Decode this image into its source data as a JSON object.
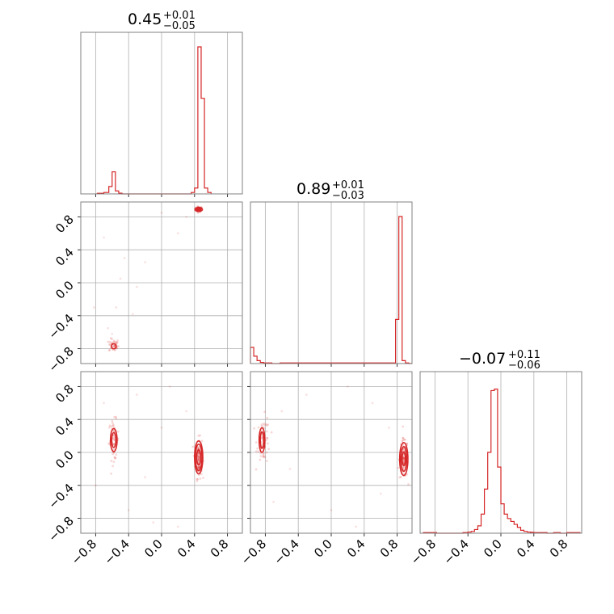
{
  "chart_data": {
    "type": "corner",
    "color": "#d62728",
    "grid": true,
    "axis_range": [
      -0.98,
      0.98
    ],
    "ticks": [
      -0.8,
      -0.4,
      0.0,
      0.4,
      0.8
    ],
    "tick_labels": [
      "−0.8",
      "−0.4",
      "0.0",
      "0.4",
      "0.8"
    ],
    "titles": [
      {
        "median": "0.45",
        "plus": "+0.01",
        "minus": "−0.05"
      },
      {
        "median": "0.89",
        "plus": "+0.01",
        "minus": "−0.03"
      },
      {
        "median": "−0.07",
        "plus": "+0.11",
        "minus": "−0.06"
      }
    ],
    "histograms": [
      {
        "param": 0,
        "edges": [
          -0.78,
          -0.7,
          -0.64,
          -0.6,
          -0.56,
          -0.52,
          -0.48,
          0.36,
          0.4,
          0.44,
          0.48,
          0.52,
          0.56,
          0.6
        ],
        "counts": [
          0.004,
          0.01,
          0.05,
          0.15,
          0.02,
          0.005,
          0,
          0.01,
          0.04,
          1.0,
          0.65,
          0.04,
          0.01
        ]
      },
      {
        "param": 1,
        "edges": [
          -0.98,
          -0.94,
          -0.9,
          -0.86,
          -0.82,
          -0.72,
          -0.62,
          0.78,
          0.82,
          0.86,
          0.9,
          0.94,
          0.98
        ],
        "counts": [
          0.11,
          0.05,
          0.02,
          0.008,
          0.004,
          0,
          0.004,
          0.3,
          1.0,
          0.02,
          0.004,
          0
        ],
        "note_unused": false
      },
      {
        "param": 2,
        "edges": [
          -0.94,
          -0.86,
          -0.78,
          -0.7,
          -0.62,
          -0.54,
          -0.46,
          -0.4,
          -0.36,
          -0.32,
          -0.28,
          -0.24,
          -0.2,
          -0.16,
          -0.12,
          -0.08,
          -0.04,
          0.0,
          0.04,
          0.08,
          0.12,
          0.16,
          0.2,
          0.24,
          0.28,
          0.32,
          0.36,
          0.4,
          0.48,
          0.56,
          0.64,
          0.72,
          0.8,
          0.88,
          0.96
        ],
        "counts": [
          0.004,
          0.004,
          0,
          0,
          0,
          0,
          0.004,
          0.008,
          0.012,
          0.025,
          0.05,
          0.13,
          0.3,
          0.55,
          0.97,
          0.98,
          0.45,
          0.2,
          0.13,
          0.1,
          0.08,
          0.06,
          0.04,
          0.02,
          0.012,
          0.008,
          0.006,
          0.004,
          0.004,
          0,
          0.004,
          0,
          0.004,
          0.004
        ]
      }
    ],
    "scatter_panels": [
      {
        "x_param": 0,
        "y_param": 1,
        "clusters": [
          {
            "cx": 0.45,
            "cy": 0.89,
            "sx": 0.02,
            "sy": 0.015,
            "n": 90
          },
          {
            "cx": -0.58,
            "cy": -0.76,
            "sx": 0.03,
            "sy": 0.04,
            "n": 40
          }
        ],
        "outliers": [
          [
            -0.7,
            0.55
          ],
          [
            -0.45,
            0.3
          ],
          [
            -0.3,
            -0.05
          ],
          [
            -0.55,
            -0.3
          ],
          [
            -0.2,
            0.25
          ],
          [
            -0.65,
            -0.55
          ],
          [
            -0.82,
            -0.3
          ],
          [
            -0.35,
            -0.38
          ],
          [
            0.2,
            0.6
          ],
          [
            0.0,
            0.85
          ],
          [
            0.3,
            0.8
          ],
          [
            -0.6,
            -0.62
          ],
          [
            -0.5,
            0.05
          ]
        ]
      },
      {
        "x_param": 0,
        "y_param": 2,
        "clusters": [
          {
            "cx": 0.45,
            "cy": -0.07,
            "sx": 0.02,
            "sy": 0.12,
            "n": 120
          },
          {
            "cx": -0.58,
            "cy": 0.15,
            "sx": 0.03,
            "sy": 0.12,
            "n": 60
          }
        ],
        "outliers": [
          [
            -0.7,
            0.6
          ],
          [
            -0.4,
            -0.7
          ],
          [
            0.1,
            0.8
          ],
          [
            0.2,
            -0.9
          ],
          [
            -0.1,
            -0.85
          ],
          [
            0.3,
            0.5
          ],
          [
            -0.3,
            0.7
          ],
          [
            -0.8,
            -0.4
          ],
          [
            0.0,
            0.3
          ],
          [
            -0.2,
            -0.3
          ]
        ]
      },
      {
        "x_param": 1,
        "y_param": 2,
        "clusters": [
          {
            "cx": 0.88,
            "cy": -0.08,
            "sx": 0.025,
            "sy": 0.12,
            "n": 120
          },
          {
            "cx": -0.82,
            "cy": 0.15,
            "sx": 0.04,
            "sy": 0.14,
            "n": 60
          }
        ],
        "outliers": [
          [
            -0.6,
            0.5
          ],
          [
            -0.3,
            0.7
          ],
          [
            0.0,
            -0.7
          ],
          [
            0.3,
            -0.9
          ],
          [
            0.5,
            0.6
          ],
          [
            -0.7,
            -0.6
          ],
          [
            0.6,
            -0.5
          ],
          [
            -0.5,
            -0.2
          ],
          [
            0.2,
            0.8
          ],
          [
            0.7,
            0.3
          ]
        ]
      }
    ],
    "contours": [
      {
        "panel": "p01",
        "cx": 0.45,
        "cy": 0.89,
        "levels": [
          [
            0.025,
            0.014
          ],
          [
            0.045,
            0.024
          ]
        ]
      },
      {
        "panel": "p01",
        "cx": -0.58,
        "cy": -0.77,
        "levels": [
          [
            0.03,
            0.03
          ]
        ]
      },
      {
        "panel": "p02",
        "cx": 0.45,
        "cy": -0.06,
        "levels": [
          [
            0.025,
            0.09
          ],
          [
            0.04,
            0.16
          ],
          [
            0.05,
            0.2
          ]
        ]
      },
      {
        "panel": "p02",
        "cx": -0.58,
        "cy": 0.15,
        "levels": [
          [
            0.025,
            0.09
          ],
          [
            0.04,
            0.14
          ]
        ]
      },
      {
        "panel": "p12",
        "cx": 0.88,
        "cy": -0.08,
        "levels": [
          [
            0.02,
            0.08
          ],
          [
            0.035,
            0.15
          ],
          [
            0.05,
            0.2
          ]
        ]
      },
      {
        "panel": "p12",
        "cx": -0.84,
        "cy": 0.15,
        "levels": [
          [
            0.02,
            0.1
          ],
          [
            0.035,
            0.15
          ]
        ]
      }
    ]
  }
}
